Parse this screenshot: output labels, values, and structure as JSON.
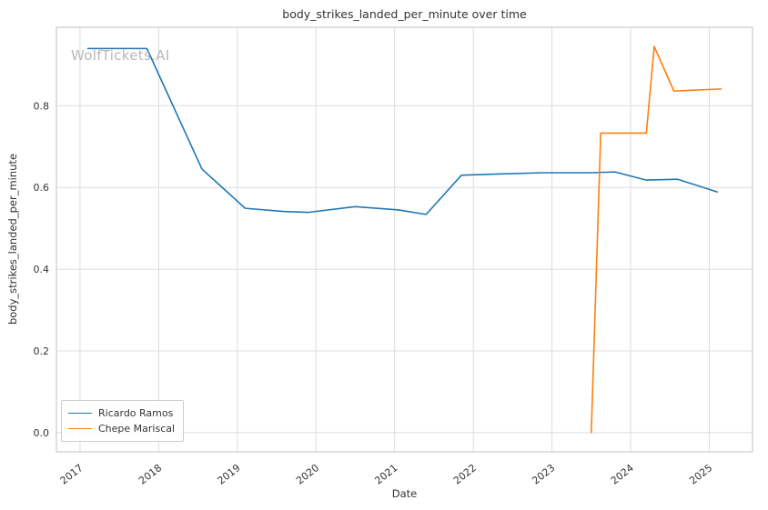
{
  "watermark": "WolfTickets.AI",
  "chart_data": {
    "type": "line",
    "title": "body_strikes_landed_per_minute over time",
    "xlabel": "Date",
    "ylabel": "body_strikes_landed_per_minute",
    "x_ticks": [
      2017,
      2018,
      2019,
      2020,
      2021,
      2022,
      2023,
      2024,
      2025
    ],
    "y_ticks": [
      0.0,
      0.2,
      0.4,
      0.6,
      0.8
    ],
    "xlim": [
      2016.7,
      2025.55
    ],
    "ylim": [
      -0.047,
      0.992
    ],
    "grid": true,
    "legend_position": "lower left",
    "colors": {
      "grid": "#dcdcdc",
      "frame": "#cccccc",
      "text": "#333333",
      "watermark": "#b8b8b8",
      "background": "#ffffff"
    },
    "series": [
      {
        "name": "Ricardo Ramos",
        "color": "#1f77b4",
        "x": [
          2017.1,
          2017.85,
          2018.55,
          2019.1,
          2019.6,
          2019.9,
          2020.5,
          2021.05,
          2021.4,
          2021.85,
          2022.35,
          2022.9,
          2023.5,
          2023.8,
          2024.2,
          2024.6,
          2025.1
        ],
        "y": [
          0.94,
          0.94,
          0.645,
          0.549,
          0.541,
          0.539,
          0.553,
          0.545,
          0.534,
          0.63,
          0.633,
          0.636,
          0.636,
          0.638,
          0.618,
          0.62,
          0.589
        ]
      },
      {
        "name": "Chepe Mariscal",
        "color": "#ff7f0e",
        "x": [
          2023.5,
          2023.62,
          2024.2,
          2024.3,
          2024.55,
          2025.15
        ],
        "y": [
          0.0,
          0.733,
          0.733,
          0.945,
          0.836,
          0.841
        ]
      }
    ]
  }
}
